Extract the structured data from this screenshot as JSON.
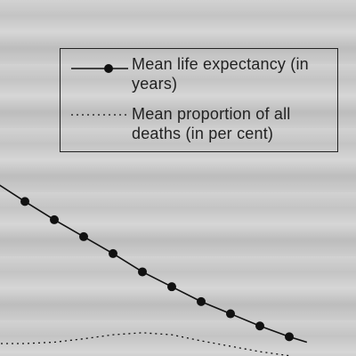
{
  "chart_data": {
    "type": "line",
    "title": "",
    "xlabel": "",
    "ylabel": "",
    "series": [
      {
        "name": "Mean life expectancy (in years)",
        "style": "solid-with-markers",
        "color": "#111111",
        "x": [
          1,
          2,
          3,
          4,
          5,
          6,
          7,
          8,
          9,
          10
        ],
        "values": [
          10.5,
          9.15,
          7.9,
          6.65,
          5.3,
          4.2,
          3.1,
          2.2,
          1.3,
          0.5
        ]
      },
      {
        "name": "Mean proportion of all deaths (in per cent)",
        "style": "dotted",
        "color": "#111111",
        "x": [
          0,
          1,
          2,
          3,
          4,
          5,
          6,
          7,
          8,
          9,
          10
        ],
        "values": [
          0.0,
          0.0,
          0.1,
          0.35,
          0.65,
          0.8,
          0.65,
          0.2,
          -0.2,
          -0.6,
          -0.9
        ]
      }
    ],
    "legend_position": "top-right",
    "grid": false
  }
}
